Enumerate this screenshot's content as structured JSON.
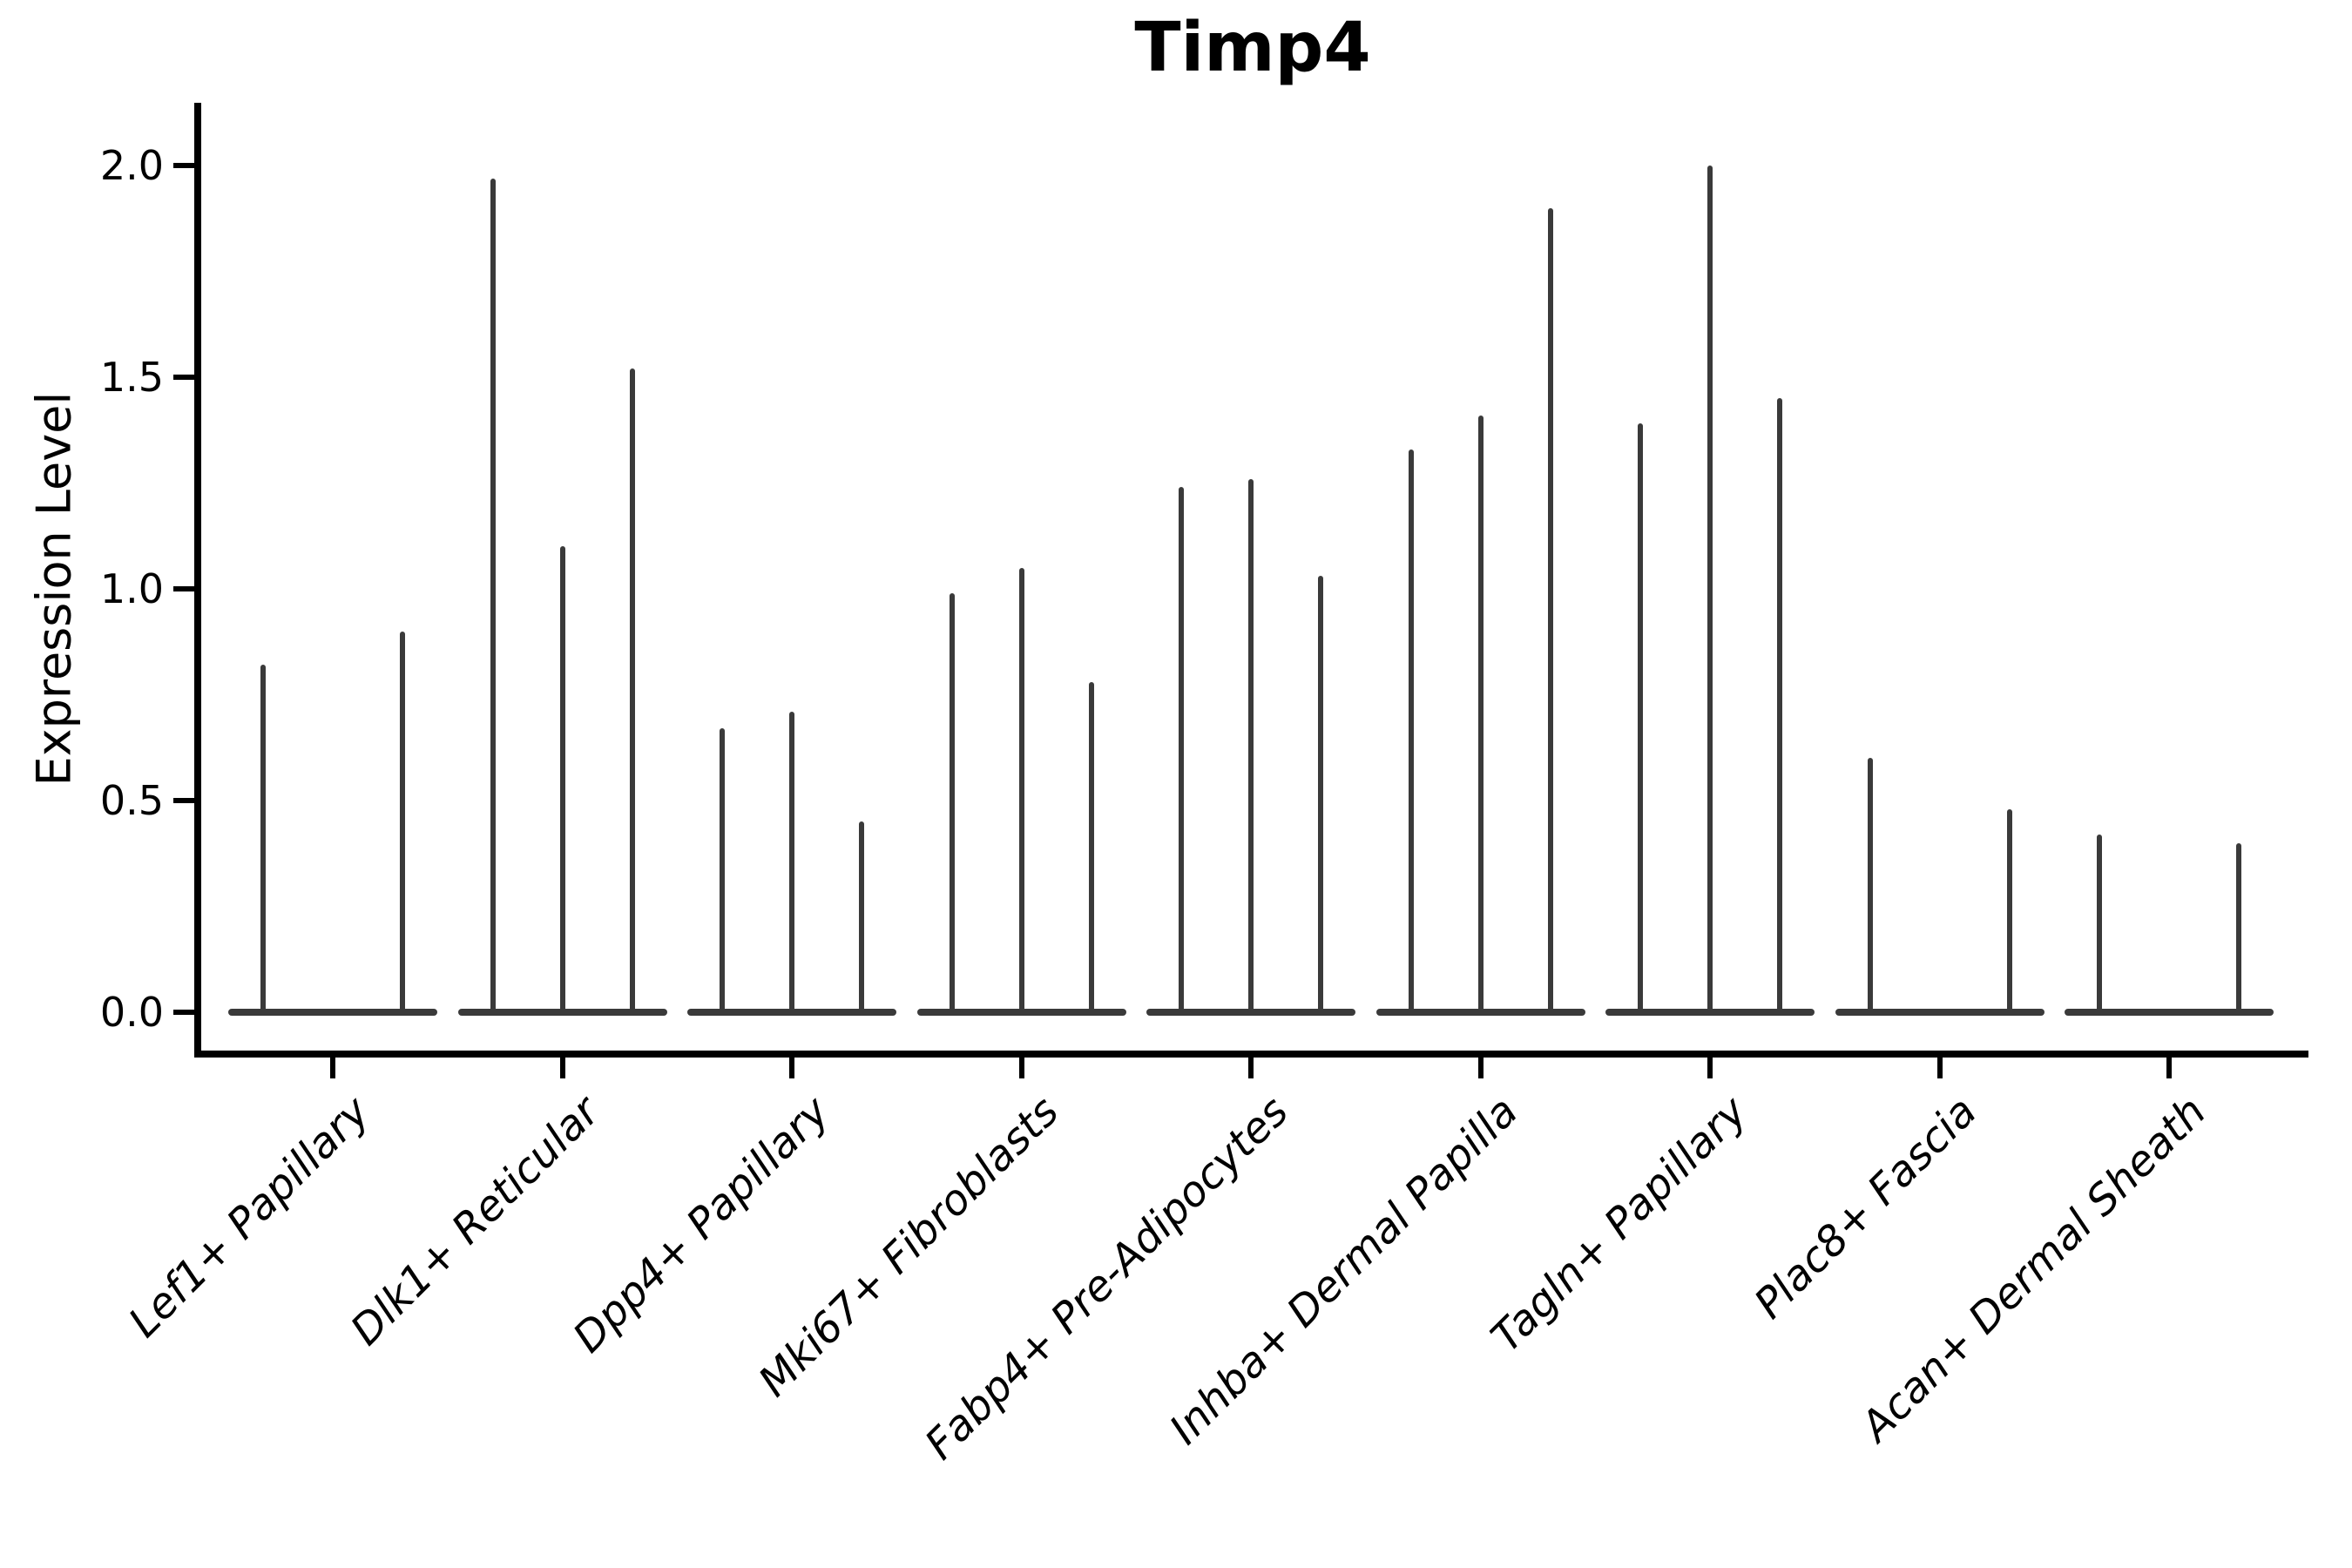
{
  "title": "Timp4",
  "y_axis": {
    "label": "Expression Level",
    "ticks": [
      {
        "label": "0.0",
        "value": 0.0
      },
      {
        "label": "0.5",
        "value": 0.5
      },
      {
        "label": "1.0",
        "value": 1.0
      },
      {
        "label": "1.5",
        "value": 1.5
      },
      {
        "label": "2.0",
        "value": 2.0
      }
    ]
  },
  "chart_data": {
    "type": "violin",
    "title": "Timp4",
    "xlabel": "",
    "ylabel": "Expression Level",
    "ylim": [
      0,
      2.15
    ],
    "ytick_values": [
      0.0,
      0.5,
      1.0,
      1.5,
      2.0
    ],
    "grid": false,
    "legend_position": "none",
    "violins_per_category": 3,
    "categories": [
      "Lef1+ Papillary",
      "Dlk1+ Reticular",
      "Dpp4+ Papillary",
      "Mki67+ Fibroblasts",
      "Fabp4+ Pre-Adipocytes",
      "Inhba+ Dermal Papilla",
      "Tagln+ Papillary",
      "Plac8+ Fascia",
      "Acan+ Dermal Sheath"
    ],
    "series": [
      {
        "category": "Lef1+ Papillary",
        "spike_heights": [
          0.82,
          0,
          0.9
        ]
      },
      {
        "category": "Dlk1+ Reticular",
        "spike_heights": [
          1.97,
          1.1,
          1.52
        ]
      },
      {
        "category": "Dpp4+ Papillary",
        "spike_heights": [
          0.67,
          0.71,
          0.45
        ]
      },
      {
        "category": "Mki67+ Fibroblasts",
        "spike_heights": [
          0.99,
          1.05,
          0.78
        ]
      },
      {
        "category": "Fabp4+ Pre-Adipocytes",
        "spike_heights": [
          1.24,
          1.26,
          1.03
        ]
      },
      {
        "category": "Inhba+ Dermal Papilla",
        "spike_heights": [
          1.33,
          1.41,
          1.9
        ]
      },
      {
        "category": "Tagln+ Papillary",
        "spike_heights": [
          1.39,
          2.0,
          1.45
        ]
      },
      {
        "category": "Plac8+ Fascia",
        "spike_heights": [
          0.6,
          0,
          0.48
        ]
      },
      {
        "category": "Acan+ Dermal Sheath",
        "spike_heights": [
          0.42,
          0,
          0.4
        ]
      }
    ]
  },
  "style": {
    "violin_color": "#3a3a3a",
    "axis_color": "#000000",
    "background_color": "#ffffff"
  }
}
